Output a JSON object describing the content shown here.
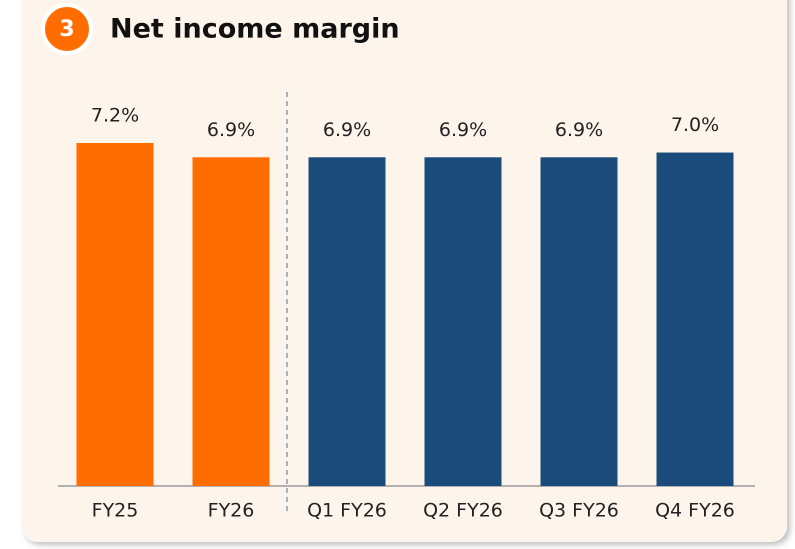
{
  "chart_data": {
    "type": "bar",
    "badge": "3",
    "title": "Net income margin",
    "categories": [
      "FY25",
      "FY26",
      "Q1 FY26",
      "Q2 FY26",
      "Q3 FY26",
      "Q4 FY26"
    ],
    "values": [
      7.2,
      6.9,
      6.9,
      6.9,
      6.9,
      7.0
    ],
    "value_labels": [
      "7.2%",
      "6.9%",
      "6.9%",
      "6.9%",
      "6.9%",
      "7.0%"
    ],
    "colors": [
      "#ff6d00",
      "#ff6d00",
      "#1b4b7a",
      "#1b4b7a",
      "#1b4b7a",
      "#1b4b7a"
    ]
  }
}
